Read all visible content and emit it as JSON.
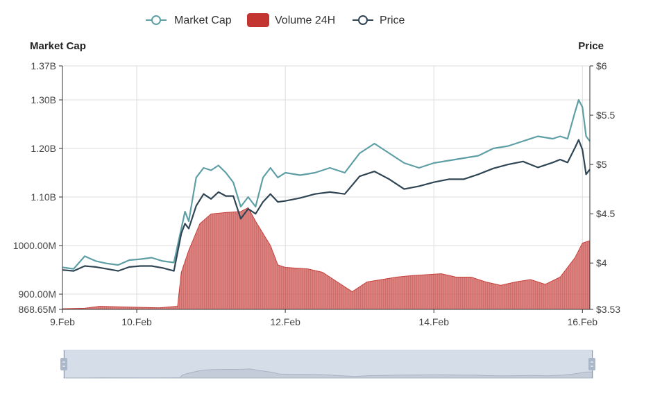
{
  "colors": {
    "market_cap": "#5e9ea5",
    "volume": "#c23531",
    "price": "#2f4554",
    "grid": "#dddddd",
    "axis": "#333333",
    "slider_fill": "#d5dde9",
    "slider_border": "#c7d1de",
    "slider_handle": "#a9b7c9"
  },
  "legend": {
    "market_cap": "Market Cap",
    "volume": "Volume 24H",
    "price": "Price"
  },
  "chart_data": {
    "type": "line",
    "title": "",
    "left_axis": {
      "title": "Market Cap",
      "ticks": [
        {
          "value": 868.65,
          "label": "868.65M"
        },
        {
          "value": 900,
          "label": "900.00M"
        },
        {
          "value": 1000,
          "label": "1000.00M"
        },
        {
          "value": 1100,
          "label": "1.10B"
        },
        {
          "value": 1200,
          "label": "1.20B"
        },
        {
          "value": 1300,
          "label": "1.30B"
        },
        {
          "value": 1370,
          "label": "1.37B"
        }
      ],
      "range": [
        868.65,
        1370
      ],
      "unit": "M"
    },
    "right_axis": {
      "title": "Price",
      "ticks": [
        {
          "value": 3.53,
          "label": "$3.53"
        },
        {
          "value": 4,
          "label": "$4"
        },
        {
          "value": 4.5,
          "label": "$4.5"
        },
        {
          "value": 5,
          "label": "$5"
        },
        {
          "value": 5.5,
          "label": "$5.5"
        },
        {
          "value": 6,
          "label": "$6"
        }
      ],
      "range": [
        3.53,
        6
      ]
    },
    "x_axis": {
      "range": [
        9,
        16.1
      ],
      "ticks": [
        {
          "value": 9,
          "label": "9.Feb"
        },
        {
          "value": 10,
          "label": "10.Feb"
        },
        {
          "value": 12,
          "label": "12.Feb"
        },
        {
          "value": 14,
          "label": "14.Feb"
        },
        {
          "value": 16,
          "label": "16.Feb"
        }
      ],
      "grid": true
    },
    "series": [
      {
        "name": "Market Cap",
        "kind": "line",
        "axis": "left",
        "x": [
          9.0,
          9.15,
          9.3,
          9.45,
          9.6,
          9.75,
          9.9,
          10.05,
          10.2,
          10.35,
          10.5,
          10.6,
          10.65,
          10.7,
          10.8,
          10.9,
          11.0,
          11.1,
          11.2,
          11.3,
          11.4,
          11.5,
          11.6,
          11.7,
          11.8,
          11.9,
          12.0,
          12.2,
          12.4,
          12.6,
          12.8,
          13.0,
          13.2,
          13.4,
          13.6,
          13.8,
          14.0,
          14.2,
          14.4,
          14.6,
          14.8,
          15.0,
          15.2,
          15.4,
          15.6,
          15.7,
          15.8,
          15.9,
          15.95,
          16.0,
          16.05,
          16.1
        ],
        "y": [
          955,
          952,
          978,
          968,
          963,
          960,
          970,
          972,
          975,
          968,
          965,
          1035,
          1070,
          1050,
          1140,
          1160,
          1155,
          1165,
          1150,
          1130,
          1080,
          1100,
          1080,
          1140,
          1160,
          1140,
          1150,
          1145,
          1150,
          1160,
          1150,
          1190,
          1210,
          1190,
          1170,
          1160,
          1170,
          1175,
          1180,
          1185,
          1200,
          1205,
          1215,
          1225,
          1220,
          1225,
          1220,
          1275,
          1300,
          1285,
          1225,
          1215
        ]
      },
      {
        "name": "Volume 24H",
        "kind": "area",
        "axis": "left",
        "x": [
          9.0,
          9.3,
          9.5,
          10.0,
          10.3,
          10.55,
          10.6,
          10.7,
          10.85,
          11.0,
          11.2,
          11.4,
          11.5,
          11.6,
          11.7,
          11.8,
          11.9,
          12.0,
          12.3,
          12.5,
          12.7,
          12.9,
          13.1,
          13.3,
          13.5,
          13.7,
          13.9,
          14.1,
          14.3,
          14.5,
          14.7,
          14.9,
          15.1,
          15.3,
          15.5,
          15.7,
          15.8,
          15.9,
          16.0,
          16.1
        ],
        "y": [
          870,
          871,
          875,
          873,
          872,
          875,
          945,
          990,
          1045,
          1065,
          1068,
          1070,
          1078,
          1050,
          1025,
          1000,
          960,
          955,
          952,
          945,
          925,
          905,
          925,
          930,
          935,
          938,
          940,
          942,
          935,
          935,
          925,
          918,
          925,
          930,
          920,
          935,
          955,
          975,
          1005,
          1010
        ]
      },
      {
        "name": "Price",
        "kind": "line",
        "axis": "right",
        "x": [
          9.0,
          9.15,
          9.3,
          9.45,
          9.6,
          9.75,
          9.9,
          10.05,
          10.2,
          10.35,
          10.5,
          10.6,
          10.65,
          10.7,
          10.8,
          10.9,
          11.0,
          11.1,
          11.2,
          11.3,
          11.4,
          11.5,
          11.6,
          11.7,
          11.8,
          11.9,
          12.0,
          12.2,
          12.4,
          12.6,
          12.8,
          13.0,
          13.2,
          13.4,
          13.6,
          13.8,
          14.0,
          14.2,
          14.4,
          14.6,
          14.8,
          15.0,
          15.2,
          15.4,
          15.6,
          15.7,
          15.8,
          15.9,
          15.95,
          16.0,
          16.05,
          16.1
        ],
        "y": [
          3.93,
          3.92,
          3.97,
          3.96,
          3.94,
          3.92,
          3.96,
          3.97,
          3.97,
          3.95,
          3.92,
          4.3,
          4.4,
          4.35,
          4.58,
          4.7,
          4.65,
          4.72,
          4.68,
          4.68,
          4.45,
          4.55,
          4.5,
          4.62,
          4.7,
          4.62,
          4.63,
          4.66,
          4.7,
          4.72,
          4.7,
          4.88,
          4.93,
          4.85,
          4.75,
          4.78,
          4.82,
          4.85,
          4.85,
          4.9,
          4.96,
          5.0,
          5.03,
          4.97,
          5.02,
          5.05,
          5.02,
          5.17,
          5.25,
          5.15,
          4.9,
          4.95
        ]
      }
    ]
  }
}
